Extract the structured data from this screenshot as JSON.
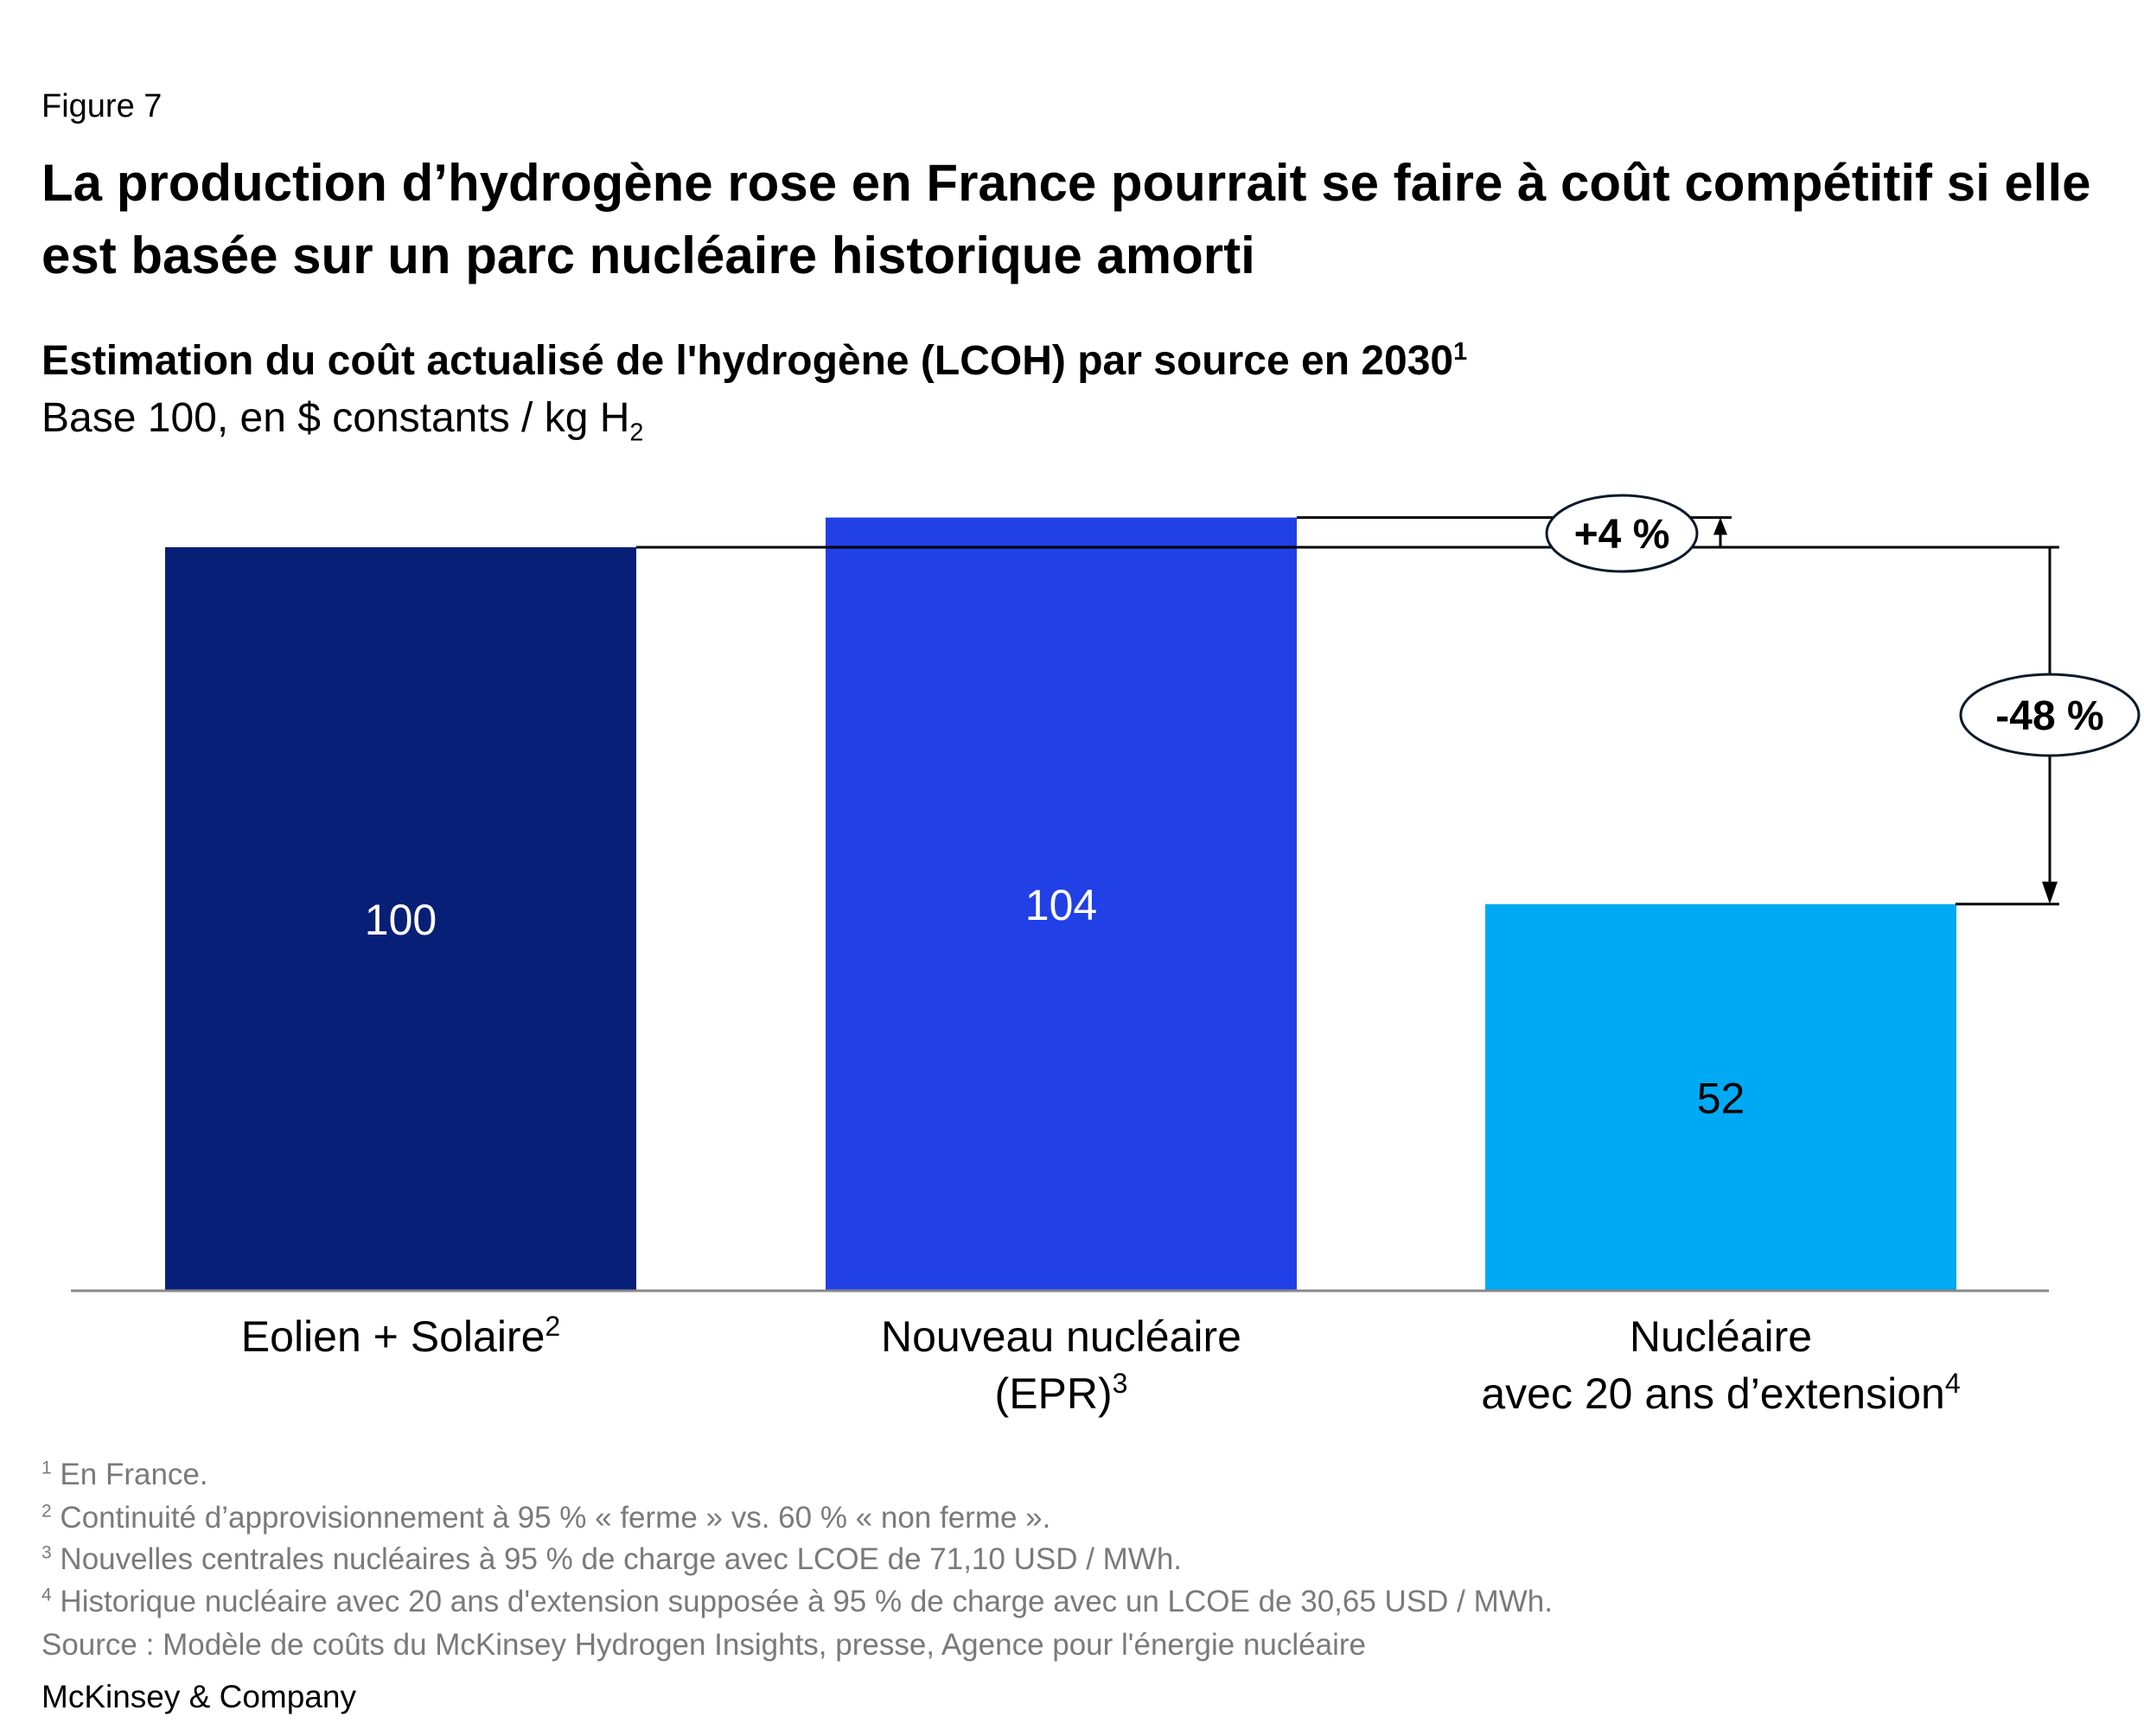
{
  "figure_label": "Figure 7",
  "title": "La production d’hydrogène rose en France pourrait se faire à coût compétitif si elle est basée sur un parc nucléaire historique amorti",
  "subtitle": "Estimation du coût actualisé de l'hydrogène (LCOH) par source en 2030",
  "subtitle_sup": "1",
  "unit_text": "Base 100, en $ constants / kg H",
  "unit_sub": "2",
  "chart_data": {
    "type": "bar",
    "title": "Estimation du coût actualisé de l'hydrogène (LCOH) par source en 2030",
    "ylabel": "Base 100, en $ constants / kg H2",
    "xlabel": "",
    "ylim": [
      0,
      104
    ],
    "grid": false,
    "categories": [
      {
        "lines": [
          "Eolien + Solaire"
        ],
        "sup": "2"
      },
      {
        "lines": [
          "Nouveau nucléaire",
          "(EPR)"
        ],
        "sup": "3"
      },
      {
        "lines": [
          "Nucléaire",
          "avec 20 ans d’extension"
        ],
        "sup": "4"
      }
    ],
    "values": [
      100,
      104,
      52
    ],
    "value_labels": [
      "100",
      "104",
      "52"
    ],
    "colors": [
      "#071f76",
      "#2140e6",
      "#00a9f4"
    ],
    "annotations": [
      {
        "text": "+4 %",
        "from": 100,
        "to": 104
      },
      {
        "text": "-48 %",
        "from": 100,
        "to": 52
      }
    ]
  },
  "footnotes": [
    {
      "num": "1",
      "text": "En France."
    },
    {
      "num": "2",
      "text": "Continuité d’approvisionnement à 95 % « ferme » vs. 60 % « non ferme »."
    },
    {
      "num": "3",
      "text": "Nouvelles centrales nucléaires à 95 % de charge avec LCOE de 71,10 USD / MWh."
    },
    {
      "num": "4",
      "text": "Historique nucléaire avec 20 ans d'extension supposée à 95 % de charge avec un LCOE de 30,65 USD / MWh."
    }
  ],
  "source": "Source : Modèle de coûts du McKinsey Hydrogen Insights, presse, Agence pour l'énergie nucléaire",
  "brand": "McKinsey & Company"
}
